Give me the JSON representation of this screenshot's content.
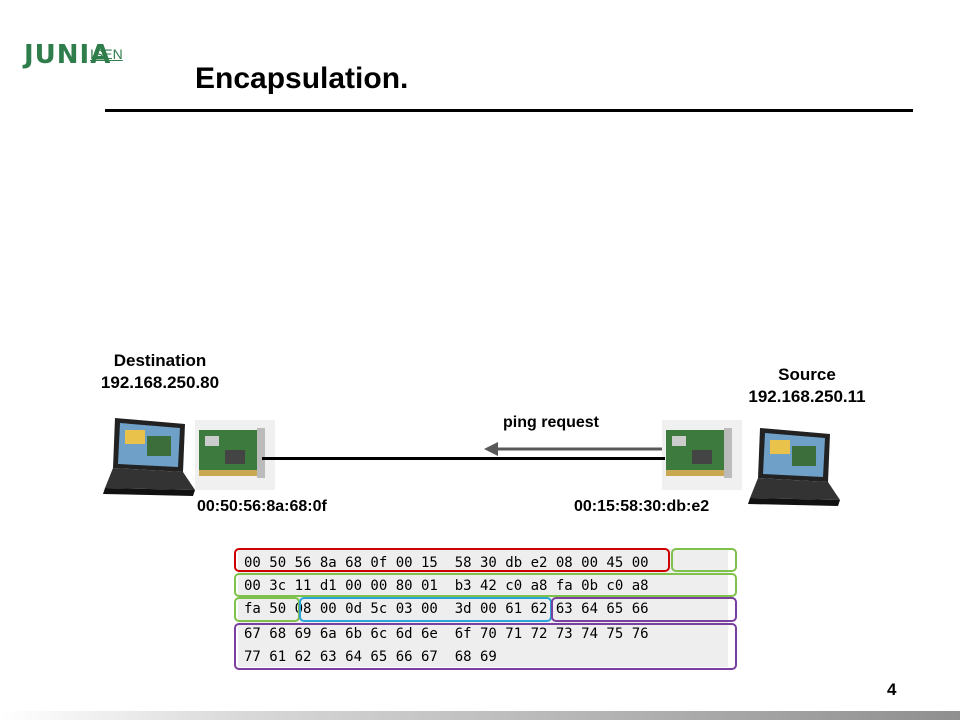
{
  "logo": {
    "brand": "JUNIA",
    "sub": "ISEN"
  },
  "slide": {
    "title": "Encapsulation.",
    "page_number": "4"
  },
  "destination": {
    "label": "Destination",
    "ip": "192.168.250.80",
    "mac": "00:50:56:8a:68:0f"
  },
  "source": {
    "label": "Source",
    "ip": "192.168.250.11",
    "mac": "00:15:58:30:db:e2"
  },
  "arrow": {
    "label": "ping request"
  },
  "hexdump": {
    "rows": [
      "00 50 56 8a 68 0f 00 15  58 30 db e2 08 00 45 00",
      "00 3c 11 d1 00 00 80 01  b3 42 c0 a8 fa 0b c0 a8",
      "fa 50 08 00 0d 5c 03 00  3d 00 61 62 63 64 65 66",
      "67 68 69 6a 6b 6c 6d 6e  6f 70 71 72 73 74 75 76",
      "77 61 62 63 64 65 66 67  68 69"
    ]
  },
  "colors": {
    "ethernet": "#cc0000",
    "ip": "#7fc24b",
    "icmp": "#2aa3d8",
    "data": "#7b3fa0",
    "logo": "#2e7d4a"
  }
}
